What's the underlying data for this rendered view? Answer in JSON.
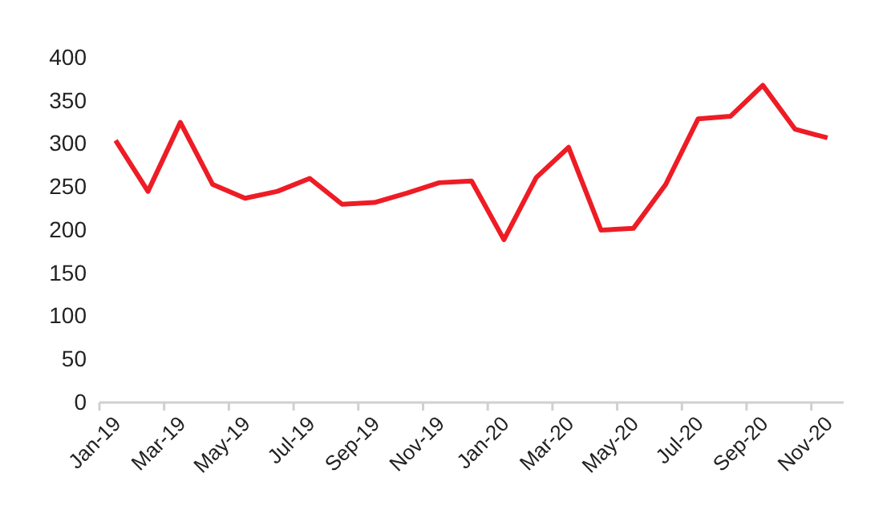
{
  "chart_data": {
    "type": "line",
    "categories": [
      "Jan-19",
      null,
      "Mar-19",
      null,
      "May-19",
      null,
      "Jul-19",
      null,
      "Sep-19",
      null,
      "Nov-19",
      null,
      "Jan-20",
      null,
      "Mar-20",
      null,
      "May-20",
      null,
      "Jul-20",
      null,
      "Sep-20",
      null,
      "Nov-20"
    ],
    "series": [
      {
        "color": "#ee1c25",
        "values": [
          304,
          245,
          325,
          253,
          237,
          245,
          260,
          230,
          232,
          243,
          255,
          257,
          189,
          261,
          296,
          200,
          202,
          253,
          329,
          332,
          368,
          317,
          307
        ]
      }
    ],
    "ylim": [
      0,
      400
    ],
    "yticks": [
      0,
      50,
      100,
      150,
      200,
      250,
      300,
      350,
      400
    ],
    "grid": false,
    "marker": "none",
    "line_style": "solid"
  }
}
